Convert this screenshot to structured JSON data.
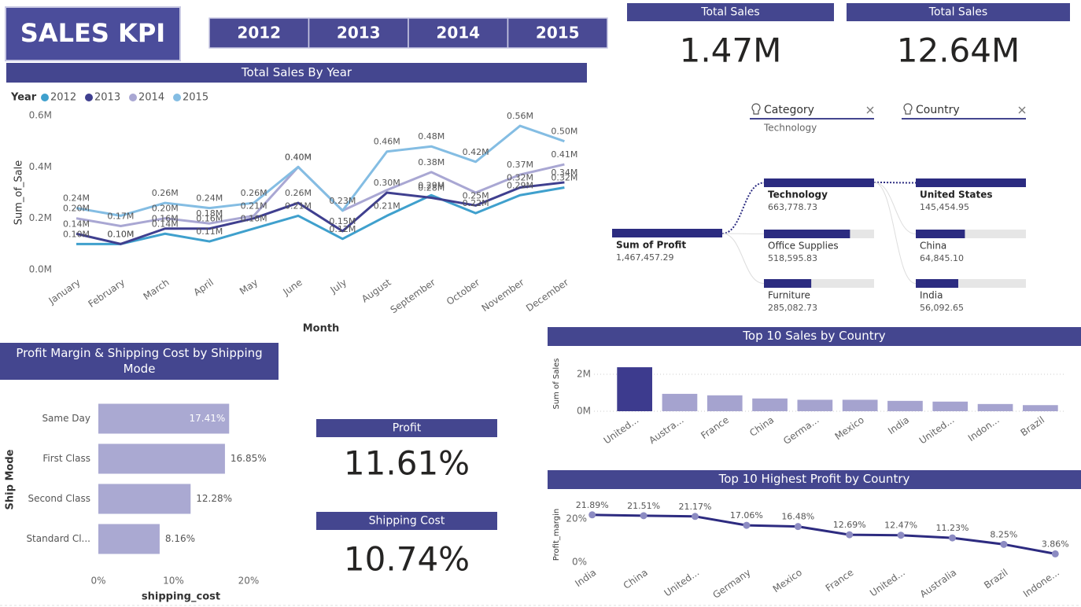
{
  "header": {
    "title": "SALES KPI",
    "years": [
      "2012",
      "2013",
      "2014",
      "2015"
    ]
  },
  "cards": [
    {
      "title": "Total Sales",
      "value": "1.47M"
    },
    {
      "title": "Total Sales",
      "value": "12.64M"
    },
    {
      "title": "Profit",
      "value": "11.61%"
    },
    {
      "title": "Shipping Cost",
      "value": "10.74%"
    }
  ],
  "filters": [
    {
      "label": "Category",
      "selection": "Technology"
    },
    {
      "label": "Country"
    }
  ],
  "decomposition": {
    "root": {
      "label": "Sum of Profit",
      "value": 1467457.29,
      "value_label": "1,467,457.29"
    },
    "levels": [
      [
        {
          "label": "Technology",
          "value": 663778.73,
          "value_label": "663,778.73"
        },
        {
          "label": "Office Supplies",
          "value": 518595.83,
          "value_label": "518,595.83"
        },
        {
          "label": "Furniture",
          "value": 285082.73,
          "value_label": "285,082.73"
        }
      ],
      [
        {
          "label": "United States",
          "value": 145454.95,
          "value_label": "145,454.95"
        },
        {
          "label": "China",
          "value": 64845.1,
          "value_label": "64,845.10"
        },
        {
          "label": "India",
          "value": 56092.65,
          "value_label": "56,092.65"
        }
      ]
    ]
  },
  "chart_data": [
    {
      "type": "line",
      "title": "Total Sales By Year",
      "x_label": "Month",
      "y_label": "Sum_of_Sale",
      "legend_title": "Year",
      "categories": [
        "January",
        "February",
        "March",
        "April",
        "May",
        "June",
        "July",
        "August",
        "September",
        "October",
        "November",
        "December"
      ],
      "ylim": [
        0,
        0.6
      ],
      "yticks": [
        {
          "value": 0,
          "label": "0.0M"
        },
        {
          "value": 0.2,
          "label": "0.2M"
        },
        {
          "value": 0.4,
          "label": "0.4M"
        },
        {
          "value": 0.6,
          "label": "0.6M"
        }
      ],
      "grid": false,
      "series": [
        {
          "name": "2012",
          "color": "#3fa0cd",
          "values": [
            0.1,
            0.1,
            0.14,
            0.11,
            0.16,
            0.21,
            0.12,
            0.21,
            0.29,
            0.22,
            0.29,
            0.32
          ],
          "value_labels": [
            "0.10M",
            "0.10M",
            "0.14M",
            "0.11M",
            "0.16M",
            "0.21M",
            "0.12M",
            "0.21M",
            "0.29M",
            "0.22M",
            "0.29M",
            "0.32M"
          ]
        },
        {
          "name": "2013",
          "color": "#3f3f8f",
          "values": [
            0.14,
            0.1,
            0.16,
            0.16,
            0.2,
            0.26,
            0.15,
            0.3,
            0.28,
            0.25,
            0.32,
            0.34
          ],
          "value_labels": [
            "0.14M",
            "0.10M",
            "0.16M",
            "0.16M",
            null,
            "0.26M",
            "0.15M",
            "0.30M",
            "0.28M",
            "0.25M",
            "0.32M",
            "0.34M"
          ]
        },
        {
          "name": "2014",
          "color": "#a9a7d3",
          "values": [
            0.2,
            0.17,
            0.2,
            0.18,
            0.21,
            0.4,
            0.23,
            0.31,
            0.38,
            0.3,
            0.37,
            0.41
          ],
          "value_labels": [
            "0.20M",
            "0.17M",
            "0.20M",
            "0.18M",
            "0.21M",
            "0.40M",
            null,
            null,
            "0.38M",
            null,
            "0.37M",
            "0.41M"
          ]
        },
        {
          "name": "2015",
          "color": "#84bde3",
          "values": [
            0.24,
            0.21,
            0.26,
            0.24,
            0.26,
            0.4,
            0.23,
            0.46,
            0.48,
            0.42,
            0.56,
            0.5
          ],
          "value_labels": [
            "0.24M",
            null,
            "0.26M",
            "0.24M",
            "0.26M",
            "0.40M",
            "0.23M",
            "0.46M",
            "0.48M",
            "0.42M",
            "0.56M",
            "0.50M"
          ]
        }
      ]
    },
    {
      "type": "bar",
      "orientation": "horizontal",
      "title": "Profit Margin & Shipping Cost by Shipping Mode",
      "x_label": "shipping_cost",
      "y_label": "Ship Mode",
      "categories": [
        "Same Day",
        "First Class",
        "Second Class",
        "Standard Cl..."
      ],
      "values": [
        17.41,
        16.85,
        12.28,
        8.16
      ],
      "value_labels": [
        "17.41%",
        "16.85%",
        "12.28%",
        "8.16%"
      ],
      "color": "#aaa9d2",
      "xlim": [
        0,
        20
      ],
      "xticks": [
        {
          "value": 0,
          "label": "0%"
        },
        {
          "value": 10,
          "label": "10%"
        },
        {
          "value": 20,
          "label": "20%"
        }
      ],
      "grid": false
    },
    {
      "type": "bar",
      "title": "Top 10 Sales by Country",
      "y_label": "Sum of Sales",
      "categories": [
        "United...",
        "Austra...",
        "France",
        "China",
        "Germa...",
        "Mexico",
        "India",
        "United...",
        "Indon...",
        "Brazil"
      ],
      "values": [
        2380000,
        940000,
        860000,
        690000,
        620000,
        620000,
        560000,
        520000,
        390000,
        330000
      ],
      "colors": [
        "#3d3b8e",
        "#a5a3cf",
        "#a5a3cf",
        "#a5a3cf",
        "#a5a3cf",
        "#a5a3cf",
        "#a5a3cf",
        "#a5a3cf",
        "#a5a3cf",
        "#a5a3cf"
      ],
      "ylim": [
        0,
        2500000
      ],
      "yticks": [
        {
          "value": 0,
          "label": "0M"
        },
        {
          "value": 2000000,
          "label": "2M"
        }
      ],
      "grid": true
    },
    {
      "type": "line",
      "title": "Top 10 Highest Profit by Country",
      "y_label": "Profit_margin",
      "categories": [
        "India",
        "China",
        "United...",
        "Germany",
        "Mexico",
        "France",
        "United...",
        "Australia",
        "Brazil",
        "Indone..."
      ],
      "values": [
        21.89,
        21.51,
        21.17,
        17.06,
        16.48,
        12.69,
        12.47,
        11.23,
        8.25,
        3.86
      ],
      "value_labels": [
        "21.89%",
        "21.51%",
        "21.17%",
        "17.06%",
        "16.48%",
        "12.69%",
        "12.47%",
        "11.23%",
        "8.25%",
        "3.86%"
      ],
      "color": "#2d2b80",
      "marker_color": "#8c8bc2",
      "markers": true,
      "ylim": [
        0,
        25
      ],
      "yticks": [
        {
          "value": 0,
          "label": "0%"
        },
        {
          "value": 20,
          "label": "20%"
        }
      ],
      "grid": false
    }
  ]
}
